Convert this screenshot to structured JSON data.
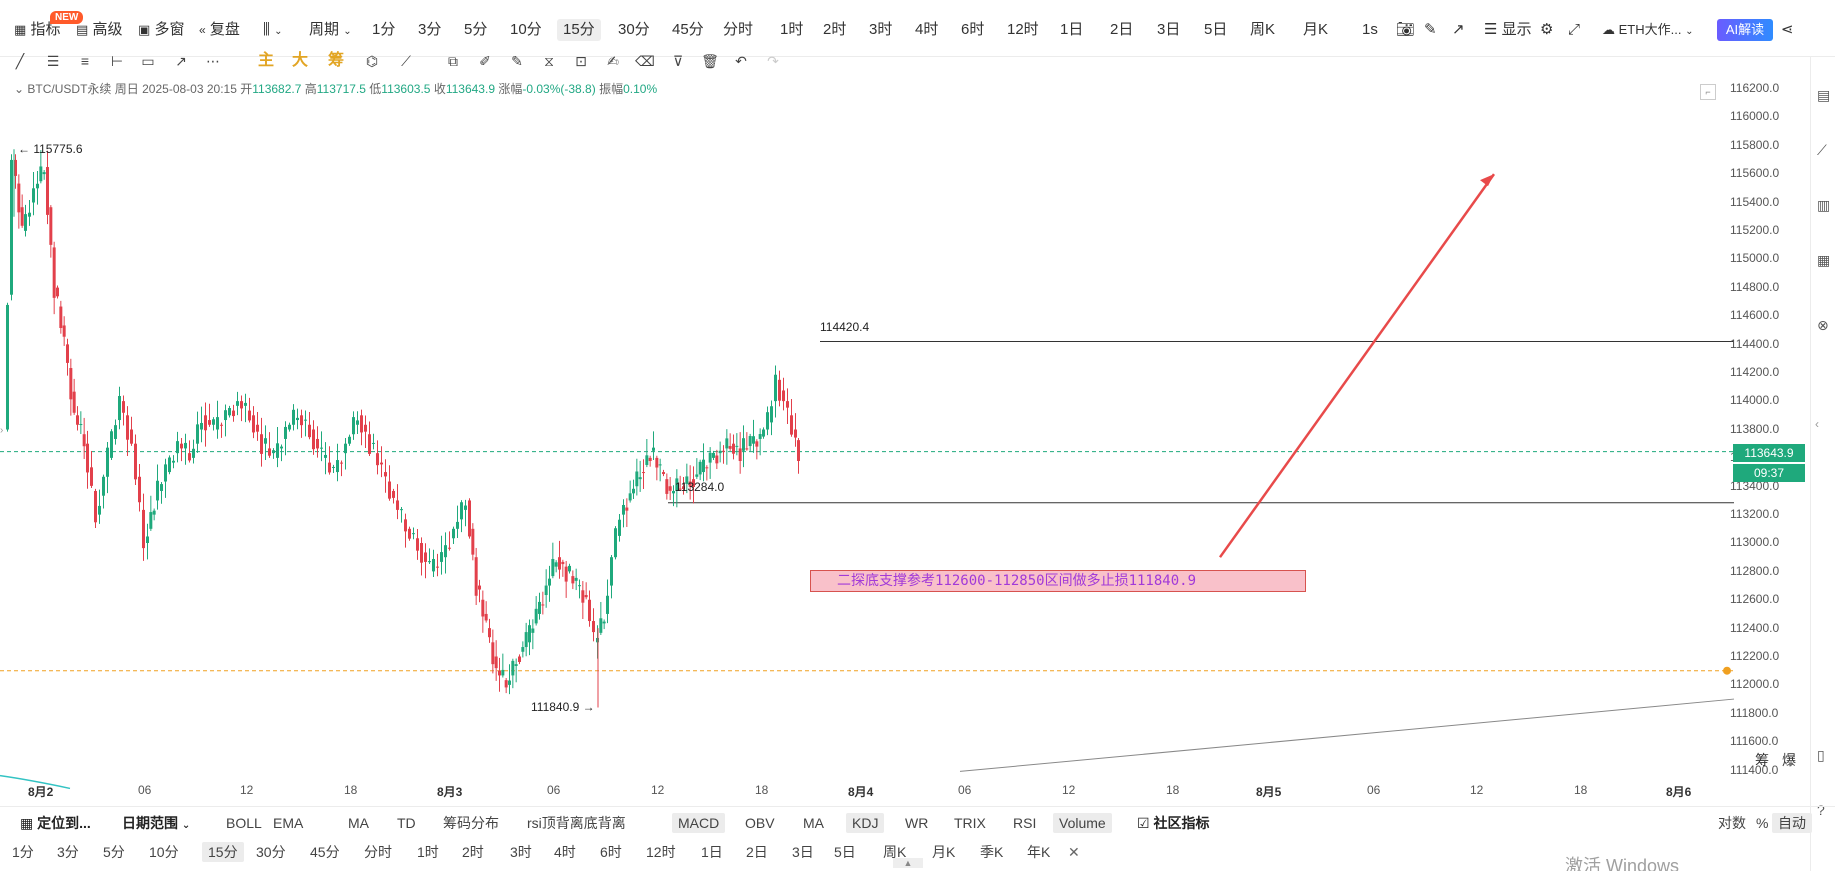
{
  "topbar": {
    "indicator": "指标",
    "new_badge": "NEW",
    "advanced": "高级",
    "multi_window": "多窗",
    "replay": "复盘",
    "period_menu": "周期",
    "periods": [
      "1分",
      "3分",
      "5分",
      "10分",
      "15分",
      "30分",
      "45分",
      "分时",
      "1时",
      "2时",
      "3时",
      "4时",
      "6时",
      "12时",
      "1日",
      "2日",
      "3日",
      "5日",
      "周K",
      "月K"
    ],
    "active_period": "15分",
    "refresh": "1s",
    "display": "显示",
    "symbol_select": "ETH大作...",
    "ai_button": "AI解读"
  },
  "drawbar": {
    "main": "主",
    "big": "大",
    "chips": "筹"
  },
  "ohlc": {
    "symbol": "BTC/USDT永续",
    "period": "周日",
    "datetime": "2025-08-03 20:15",
    "open_label": "开",
    "open": "113682.7",
    "high_label": "高",
    "high": "113717.5",
    "low_label": "低",
    "low": "113603.5",
    "close_label": "收",
    "close": "113643.9",
    "change_label": "涨幅",
    "change": "-0.03%(-38.8)",
    "amp_label": "振幅",
    "amp": "0.10%"
  },
  "price_axis": [
    "116200.0",
    "116000.0",
    "115800.0",
    "115600.0",
    "115400.0",
    "115200.0",
    "115000.0",
    "114800.0",
    "114600.0",
    "114400.0",
    "114200.0",
    "114000.0",
    "113800.0",
    "113600.0",
    "113400.0",
    "113200.0",
    "113000.0",
    "112800.0",
    "112600.0",
    "112400.0",
    "112200.0",
    "112000.0",
    "111800.0",
    "111600.0",
    "111400.0"
  ],
  "current_price": "113643.9",
  "countdown": "09:37",
  "annotations": {
    "high_mark": "115775.6",
    "low_mark": "111840.9",
    "line_upper": "114420.4",
    "line_lower": "113284.0",
    "note": "二探底支撑参考112600-112850区间做多止损111840.9"
  },
  "time_axis": [
    "8月2",
    "06",
    "12",
    "18",
    "8月3",
    "06",
    "12",
    "18",
    "8月4",
    "06",
    "12",
    "18",
    "8月5",
    "06",
    "12",
    "18",
    "8月6"
  ],
  "axis_right_labels": {
    "chips": "筹",
    "burst": "爆"
  },
  "chart_data": {
    "type": "candlestick",
    "symbol": "BTC/USDT永续",
    "ylim": [
      111400,
      116200
    ],
    "x": [
      "8月2",
      "06",
      "12",
      "18",
      "8月3",
      "06",
      "12",
      "18",
      "8月4",
      "06",
      "12",
      "18",
      "8月5",
      "06",
      "12",
      "18",
      "8月6"
    ],
    "last_close": 113643.9,
    "high": 115775.6,
    "low": 111840.9,
    "horizontal_lines": [
      114420.4,
      113284.0,
      113643.9,
      112100.0
    ]
  },
  "bottombar1": {
    "locate": "定位到...",
    "date_range": "日期范围",
    "main_indicators": [
      "BOLL",
      "EMA",
      "MA",
      "TD",
      "筹码分布",
      "rsi顶背离底背离"
    ],
    "sub_indicators": [
      "MACD",
      "OBV",
      "MA",
      "KDJ",
      "WR",
      "TRIX",
      "RSI",
      "Volume"
    ],
    "community": "社区指标",
    "log": "对数",
    "percent": "%",
    "auto": "自动"
  },
  "bottombar2": {
    "periods": [
      "1分",
      "3分",
      "5分",
      "10分",
      "15分",
      "30分",
      "45分",
      "分时",
      "1时",
      "2时",
      "3时",
      "4时",
      "6时",
      "12时",
      "1日",
      "2日",
      "3日",
      "5日",
      "周K",
      "月K",
      "季K",
      "年K"
    ],
    "active": "15分"
  },
  "watermark": "激活 Windows",
  "colors": {
    "up": "#1fa97c",
    "down": "#e2404b",
    "accent": "#f0a020",
    "arrow": "#e84a4a"
  }
}
